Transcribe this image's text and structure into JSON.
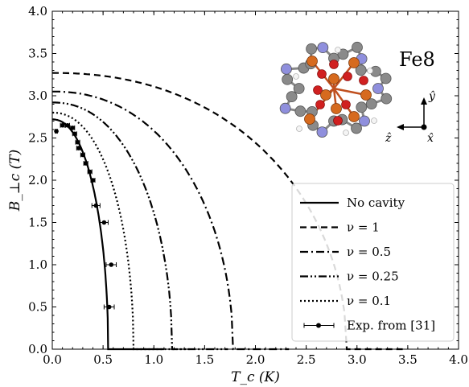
{
  "chart_data": {
    "type": "line",
    "xlabel": "T_c (K)",
    "ylabel": "B_⊥c (T)",
    "xlim": [
      0,
      4.0
    ],
    "ylim": [
      0,
      4.0
    ],
    "x_ticks": [
      "0.0",
      "0.5",
      "1.0",
      "1.5",
      "2.0",
      "2.5",
      "3.0",
      "3.5",
      "4.0"
    ],
    "y_ticks": [
      "0.0",
      "0.5",
      "1.0",
      "1.5",
      "2.0",
      "2.5",
      "3.0",
      "3.5",
      "4.0"
    ],
    "grid": false,
    "legend_position": "bottom-right",
    "series": [
      {
        "name": "No cavity",
        "style": "solid",
        "B0": 2.72,
        "Tc": 0.55
      },
      {
        "name": "ν = 1",
        "style": "dashed",
        "B0": 3.27,
        "Tc": 2.9
      },
      {
        "name": "ν = 0.5",
        "style": "dashdot",
        "B0": 3.05,
        "Tc": 1.78
      },
      {
        "name": "ν = 0.25",
        "style": "dashdotdot",
        "B0": 2.92,
        "Tc": 1.18
      },
      {
        "name": "ν = 0.1",
        "style": "dotted",
        "B0": 2.8,
        "Tc": 0.8
      }
    ],
    "experimental": {
      "name": "Exp. from [31]",
      "points": [
        {
          "x": 0.04,
          "y": 2.58,
          "xerr": 0.01
        },
        {
          "x": 0.1,
          "y": 2.65,
          "xerr": 0.02
        },
        {
          "x": 0.15,
          "y": 2.65,
          "xerr": 0.02
        },
        {
          "x": 0.2,
          "y": 2.62,
          "xerr": 0.02
        },
        {
          "x": 0.22,
          "y": 2.55,
          "xerr": 0.02
        },
        {
          "x": 0.25,
          "y": 2.45,
          "xerr": 0.02
        },
        {
          "x": 0.26,
          "y": 2.38,
          "xerr": 0.02
        },
        {
          "x": 0.3,
          "y": 2.3,
          "xerr": 0.02
        },
        {
          "x": 0.33,
          "y": 2.2,
          "xerr": 0.02
        },
        {
          "x": 0.37,
          "y": 2.1,
          "xerr": 0.02
        },
        {
          "x": 0.4,
          "y": 2.0,
          "xerr": 0.02
        },
        {
          "x": 0.43,
          "y": 1.7,
          "xerr": 0.04
        },
        {
          "x": 0.51,
          "y": 1.5,
          "xerr": 0.04
        },
        {
          "x": 0.58,
          "y": 1.0,
          "xerr": 0.05
        },
        {
          "x": 0.56,
          "y": 0.5,
          "xerr": 0.05
        }
      ]
    },
    "inset": {
      "label": "Fe8",
      "axis_y": "ŷ",
      "axis_z": "ẑ",
      "axis_x": "x̂"
    }
  }
}
